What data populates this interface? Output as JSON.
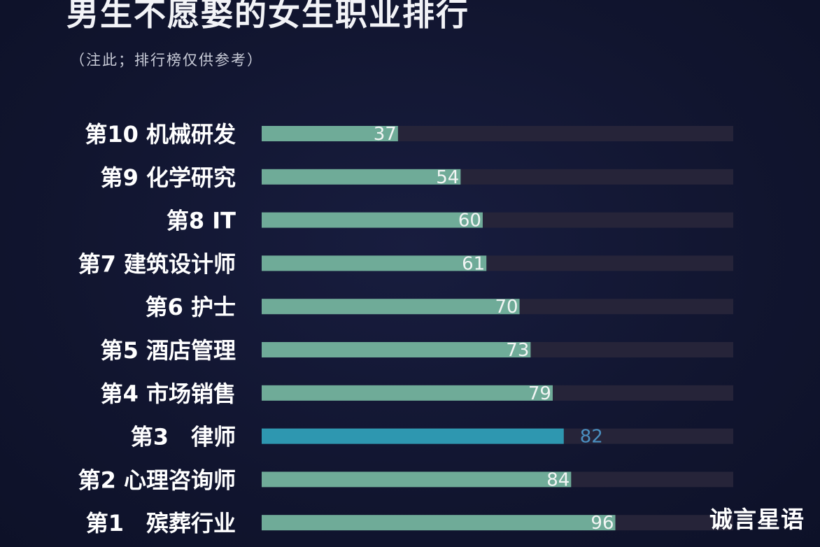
{
  "header": {
    "title": "男生不愿娶的女生职业排行",
    "subtitle": "（注此；排行榜仅供参考）"
  },
  "watermark": "诚言星语",
  "colors": {
    "background": "#121633",
    "bar": "#6fab98",
    "bar_highlight": "#2e97b0",
    "track": "#262439",
    "label": "#ffffff",
    "value_label": "#f2f5f4",
    "value_label_highlight": "#4a8fc0"
  },
  "chart_data": {
    "type": "bar",
    "orientation": "horizontal",
    "categories": [
      "第10 机械研发",
      "第9 化学研究",
      "第8 IT",
      "第7 建筑设计师",
      "第6 护士",
      "第5 酒店管理",
      "第4 市场销售",
      "第3　律师",
      "第2 心理咨询师",
      "第1　殡葬行业"
    ],
    "values": [
      37,
      54,
      60,
      61,
      70,
      73,
      79,
      82,
      84,
      96
    ],
    "highlight_index": 7,
    "xlim": [
      0,
      128
    ],
    "grid": false,
    "legend": "none"
  }
}
